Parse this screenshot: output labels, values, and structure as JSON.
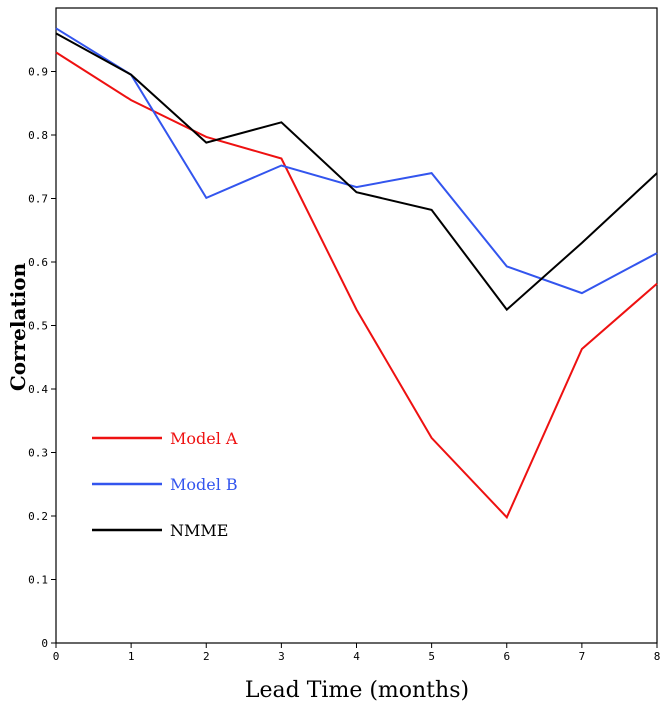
{
  "chart_data": {
    "type": "line",
    "xlabel": "Lead Time (months)",
    "ylabel": "Correlation",
    "xlim": [
      0,
      8
    ],
    "ylim": [
      0,
      1.0
    ],
    "x": [
      0,
      1,
      2,
      3,
      4,
      5,
      6,
      7,
      8
    ],
    "x_ticks": [
      "0",
      "1",
      "2",
      "3",
      "4",
      "5",
      "6",
      "7",
      "8"
    ],
    "y_ticks": [
      0,
      0.1,
      0.2,
      0.3,
      0.4,
      0.5,
      0.6,
      0.7,
      0.8,
      0.9
    ],
    "y_tick_labels": [
      "0",
      "0.1",
      "0.2",
      "0.3",
      "0.4",
      "0.5",
      "0.6",
      "0.7",
      "0.8",
      "0.9"
    ],
    "grid": false,
    "legend_position": "lower-left",
    "series": [
      {
        "name": "Model A",
        "color": "#ee1111",
        "values": [
          0.93,
          0.855,
          0.797,
          0.763,
          0.525,
          0.323,
          0.198,
          0.463,
          0.566
        ]
      },
      {
        "name": "Model B",
        "color": "#3355ee",
        "values": [
          0.968,
          0.895,
          0.701,
          0.752,
          0.718,
          0.74,
          0.593,
          0.551,
          0.614
        ]
      },
      {
        "name": "NMME",
        "color": "#000000",
        "values": [
          0.96,
          0.895,
          0.788,
          0.82,
          0.71,
          0.682,
          0.525,
          0.63,
          0.74
        ]
      }
    ]
  }
}
